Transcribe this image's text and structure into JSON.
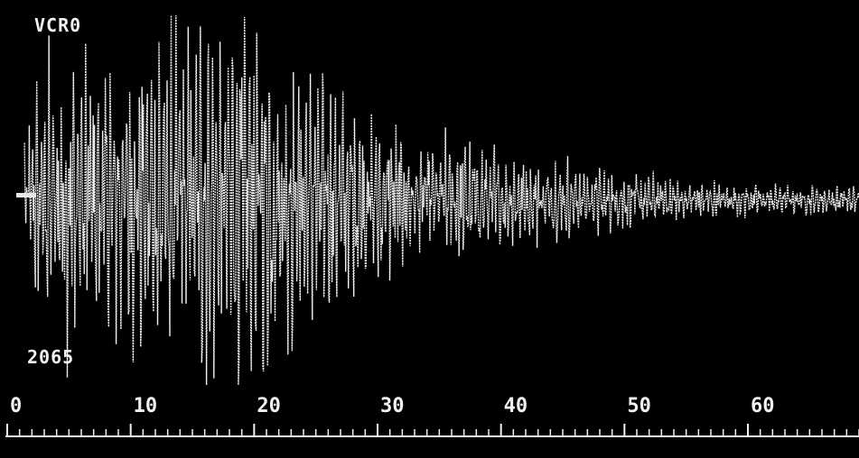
{
  "screen": {
    "channel_label": "VCR0",
    "count_label": "2065",
    "background": "#000000",
    "trace_color": "#f2f2f2"
  },
  "chart_data": {
    "type": "line",
    "title": "",
    "xlabel": "",
    "ylabel": "",
    "x_ticks": [
      "0",
      "10",
      "20",
      "30",
      "40",
      "50",
      "60"
    ],
    "xlim": [
      0,
      69
    ],
    "ylim": [
      -1,
      1
    ],
    "grid": false,
    "series": [
      {
        "envelope_t": [
          0,
          3,
          6,
          9,
          12,
          15,
          18,
          21,
          24,
          27,
          30,
          33,
          36,
          39,
          42,
          45,
          48,
          51,
          54,
          57,
          60,
          63,
          66,
          69
        ],
        "envelope_amp": [
          0,
          0.75,
          0.85,
          0.8,
          1.0,
          1.0,
          1.0,
          0.95,
          0.75,
          0.6,
          0.5,
          0.45,
          0.35,
          0.3,
          0.25,
          0.22,
          0.18,
          0.15,
          0.12,
          0.1,
          0.09,
          0.08,
          0.08,
          0.08
        ]
      }
    ]
  }
}
